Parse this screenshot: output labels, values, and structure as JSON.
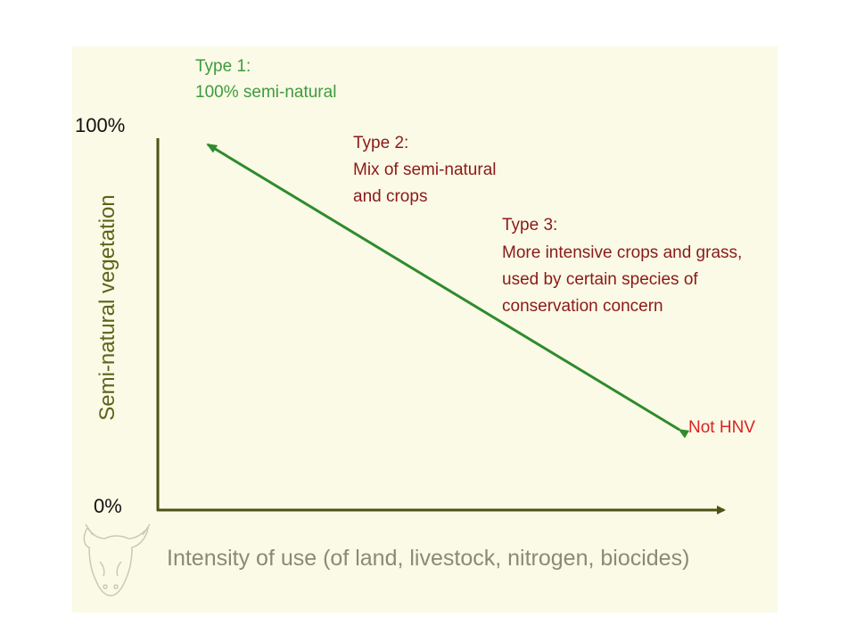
{
  "labels": {
    "type1_title": "Type 1:",
    "type1_desc": "100% semi-natural",
    "type2_title": "Type 2:",
    "type2_line1": "Mix of semi-natural",
    "type2_line2": "and crops",
    "type3_title": "Type 3:",
    "type3_line1": "More intensive crops and grass,",
    "type3_line2": "used by certain species of",
    "type3_line3": "conservation concern",
    "not_hnv": "Not HNV"
  },
  "axes": {
    "y_max_label": "100%",
    "y_min_label": "0%",
    "y_title": "Semi-natural vegetation",
    "x_title": "Intensity of use (of land, livestock, nitrogen, biocides)"
  },
  "colors": {
    "panel_background": "#fbfae6",
    "trend_arrow": "#2e8b2e",
    "axis": "#4d5216",
    "type1_text": "#3e9b3e",
    "type2_type3_text": "#8a1a1a",
    "not_hnv_text": "#dd2222"
  },
  "icons": {
    "logo": "cow-head-logo"
  }
}
